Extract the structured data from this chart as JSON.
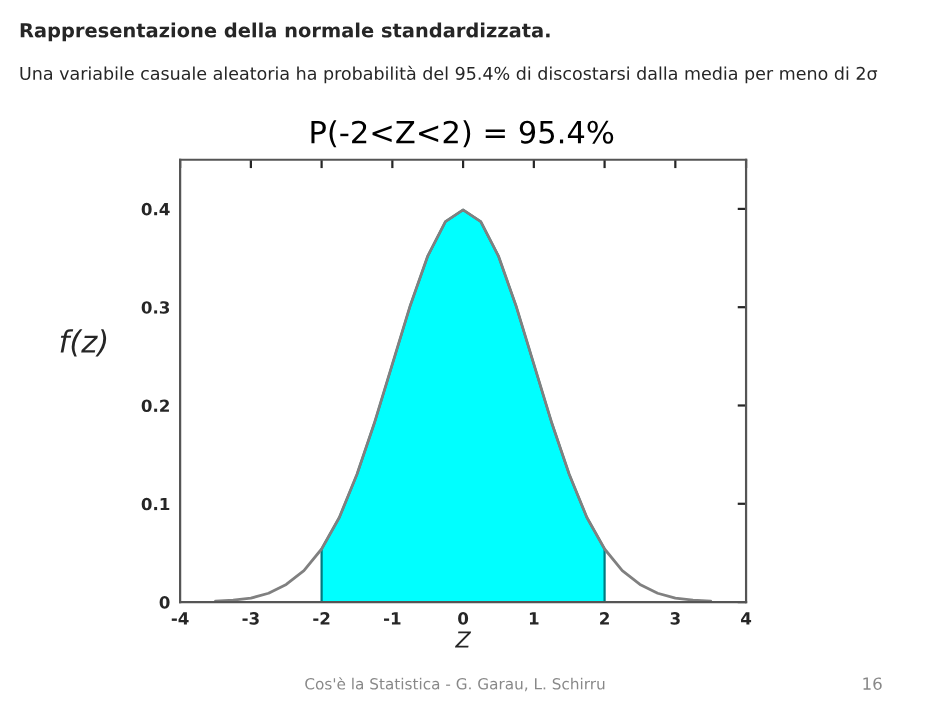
{
  "chart_data": {
    "type": "line",
    "title": "Rappresentazione della normale standardizzata.",
    "subtitle": "Una variabile casuale aleatoria ha probabilità del 95.4% di discostarsi dalla media per meno di 2σ",
    "annotations": [
      "P(-2<Z<2) = 95.4%",
      "Cos'è la Statistica - G. Garau, L. Schirru",
      "16"
    ],
    "xlabel": "Z",
    "ylabel": "f(z)",
    "series": [
      {
        "color": "#808080",
        "x": [
          -3.5,
          -3.25,
          -3,
          -2.75,
          -2.5,
          -2.25,
          -2,
          -1.75,
          -1.5,
          -1.25,
          -1,
          -0.75,
          -0.5,
          -0.25,
          0,
          0.25,
          0.5,
          0.75,
          1,
          1.25,
          1.5,
          1.75,
          2,
          2.25,
          2.5,
          2.75,
          3,
          3.25,
          3.5
        ],
        "values": [
          0.001,
          0.002,
          0.004,
          0.009,
          0.018,
          0.032,
          0.054,
          0.086,
          0.13,
          0.183,
          0.242,
          0.301,
          0.352,
          0.387,
          0.399,
          0.387,
          0.352,
          0.301,
          0.242,
          0.183,
          0.13,
          0.086,
          0.054,
          0.032,
          0.018,
          0.009,
          0.004,
          0.002,
          0.001
        ]
      },
      {
        "type": "area",
        "color": "#00ffff",
        "x": [
          -2,
          -1.75,
          -1.5,
          -1.25,
          -1,
          -0.75,
          -0.5,
          -0.25,
          0,
          0.25,
          0.5,
          0.75,
          1,
          1.25,
          1.5,
          1.75,
          2
        ],
        "values": [
          0.054,
          0.086,
          0.13,
          0.183,
          0.242,
          0.301,
          0.352,
          0.387,
          0.399,
          0.387,
          0.352,
          0.301,
          0.242,
          0.183,
          0.13,
          0.086,
          0.054
        ]
      }
    ],
    "xlim": [
      -4,
      4
    ],
    "xticks": [
      -4,
      -3,
      -2,
      -1,
      0,
      1,
      2,
      3,
      4
    ],
    "ylim": [
      0,
      0.45
    ],
    "yticks": [
      0,
      0.1,
      0.2,
      0.3,
      0.4
    ],
    "grid": false,
    "legend": false
  }
}
